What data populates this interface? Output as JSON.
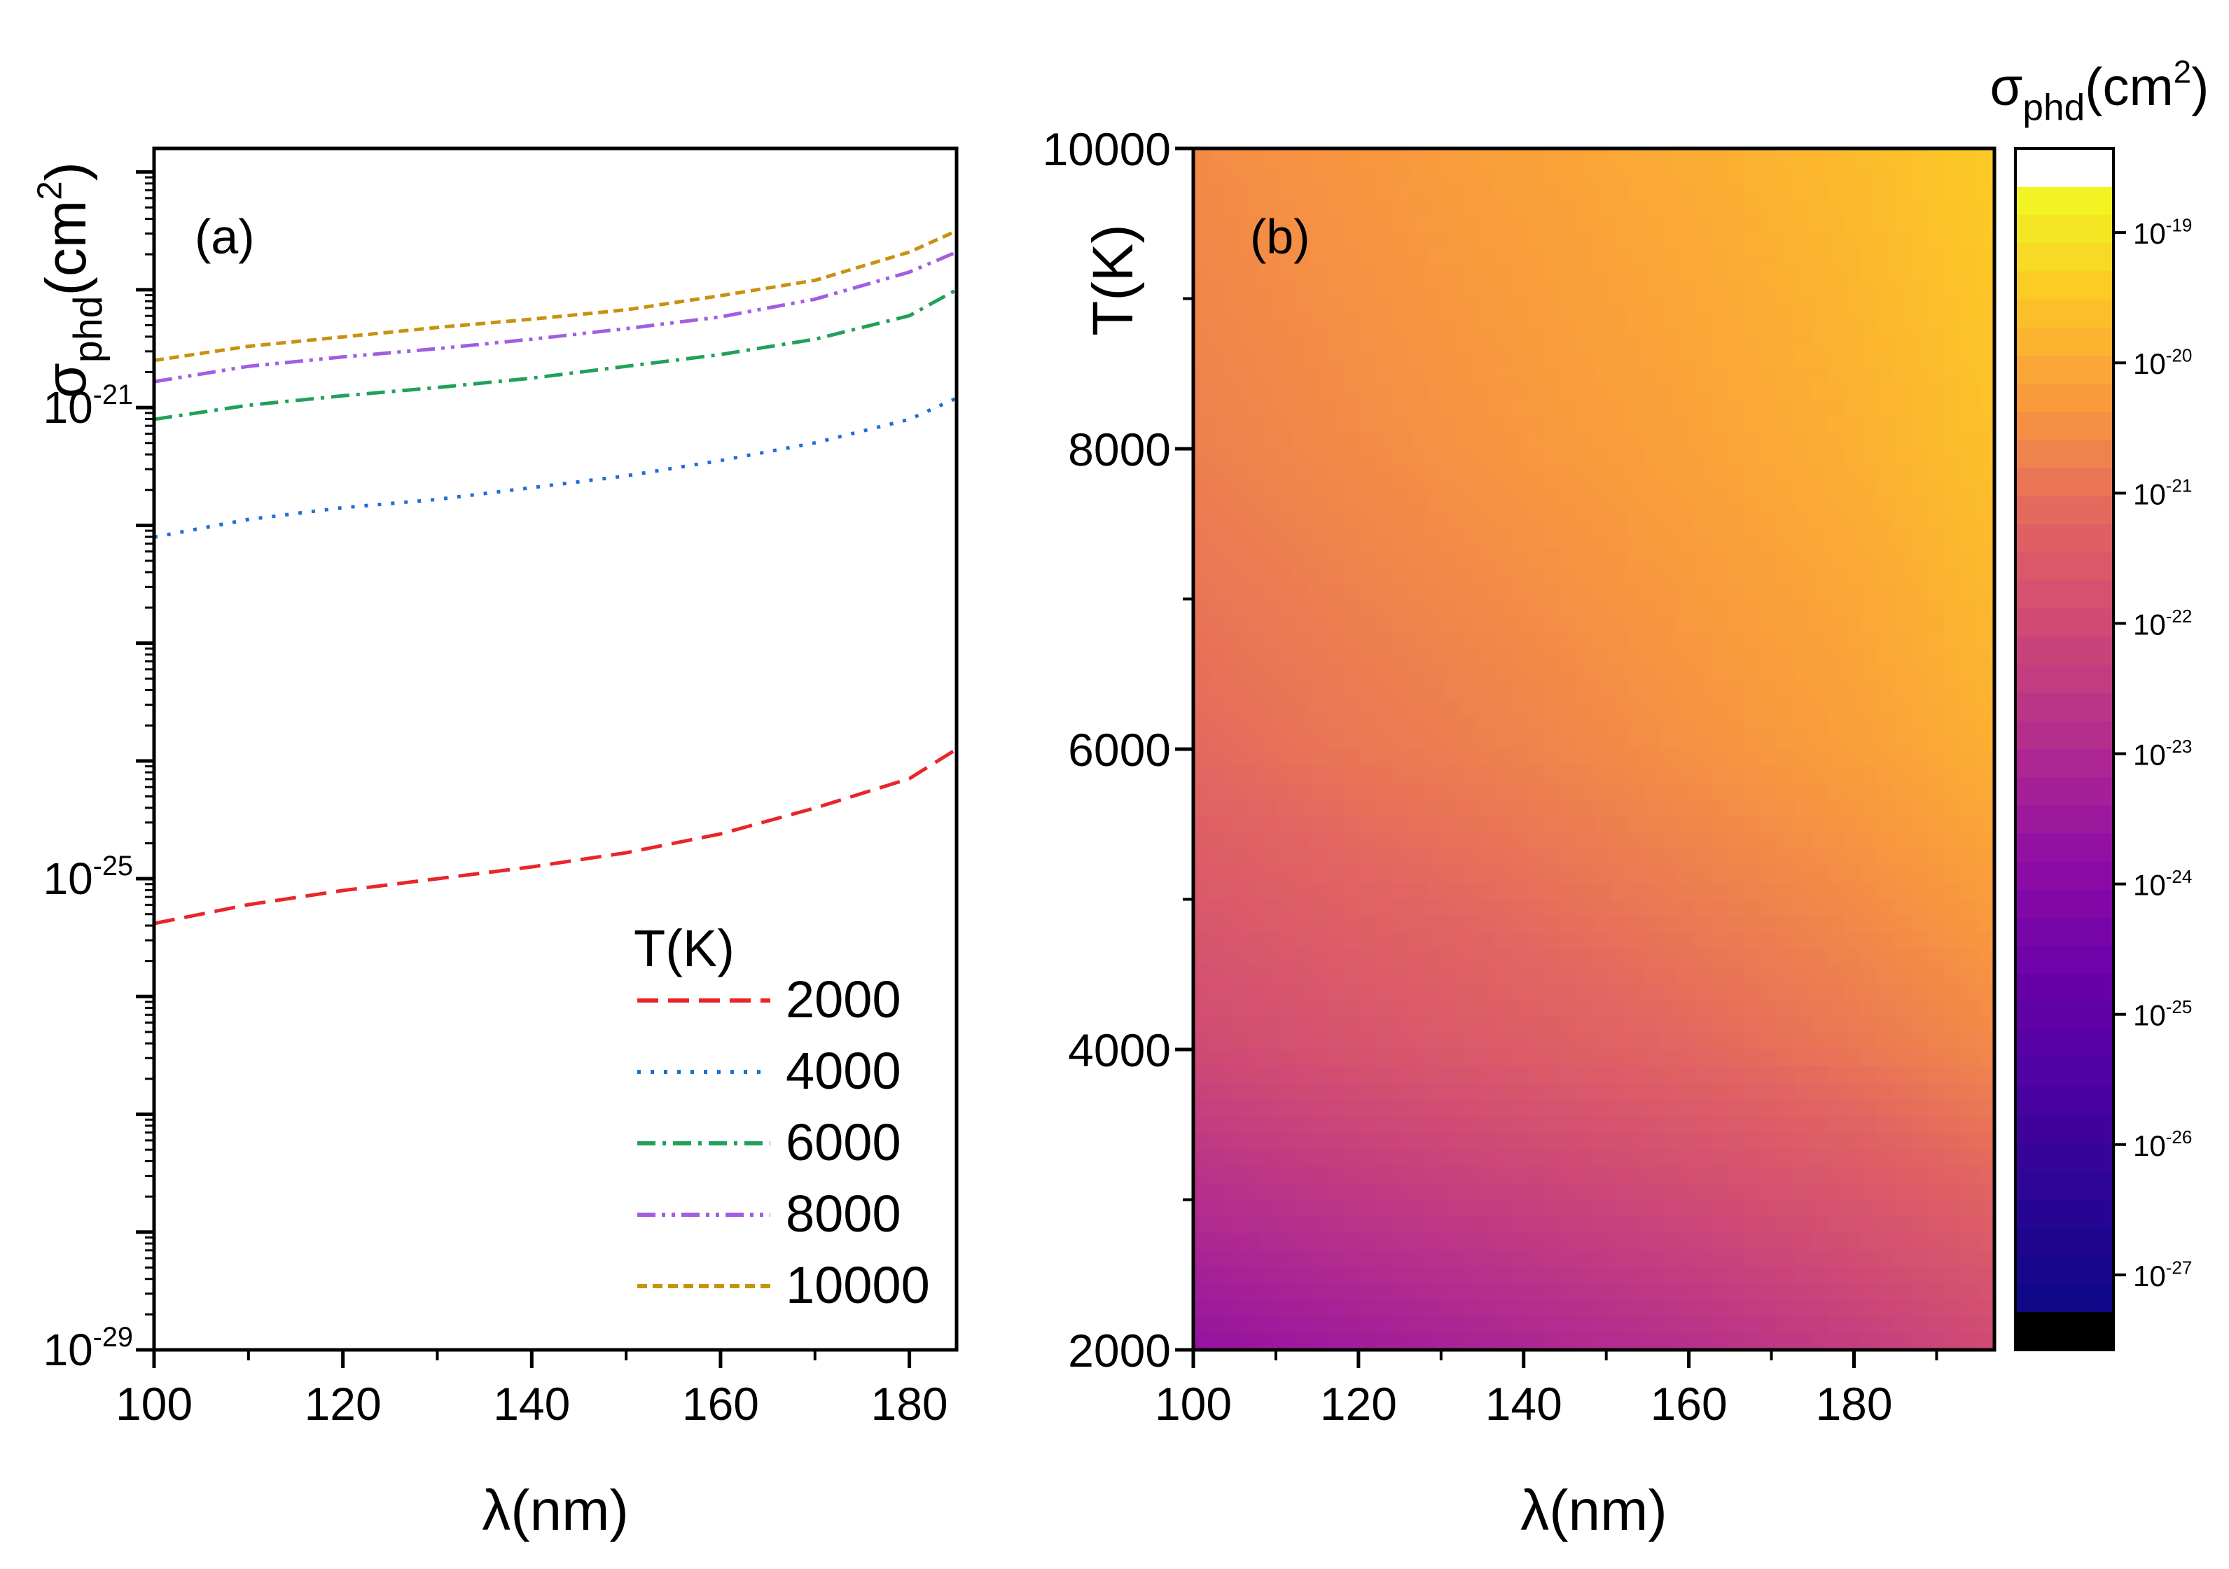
{
  "chart_data": [
    {
      "panel": "(a)",
      "type": "line",
      "title": "",
      "xlabel": "λ(nm)",
      "ylabel": {
        "base": "σ",
        "sub": "phd",
        "rest": "(cm",
        "sup": "2",
        "close": ")"
      },
      "xlim": [
        100,
        185
      ],
      "ylim_log10": [
        -29,
        -18.8
      ],
      "yscale": "log",
      "x_ticks": [
        100,
        120,
        140,
        160,
        180
      ],
      "y_ticks": [
        {
          "base": "10",
          "exp": "-21",
          "value_log10": -21
        },
        {
          "base": "10",
          "exp": "-25",
          "value_log10": -25
        },
        {
          "base": "10",
          "exp": "-29",
          "value_log10": -29
        }
      ],
      "legend": {
        "title": "T(K)",
        "placement": "lower-right"
      },
      "x": [
        100,
        110,
        120,
        130,
        140,
        150,
        160,
        170,
        180,
        185
      ],
      "series": [
        {
          "name": "2000",
          "color": "#e8262a",
          "dash": "dash",
          "log10_values": [
            -25.38,
            -25.22,
            -25.1,
            -25.0,
            -24.9,
            -24.78,
            -24.62,
            -24.4,
            -24.15,
            -23.9
          ]
        },
        {
          "name": "4000",
          "color": "#1f6fd6",
          "dash": "dot",
          "log10_values": [
            -22.1,
            -21.95,
            -21.85,
            -21.78,
            -21.68,
            -21.58,
            -21.45,
            -21.3,
            -21.1,
            -20.92
          ]
        },
        {
          "name": "6000",
          "color": "#22a05a",
          "dash": "dashdot",
          "log10_values": [
            -21.1,
            -20.98,
            -20.9,
            -20.83,
            -20.75,
            -20.65,
            -20.55,
            -20.42,
            -20.22,
            -20.0
          ]
        },
        {
          "name": "8000",
          "color": "#a15ee0",
          "dash": "dashdotdot",
          "log10_values": [
            -20.78,
            -20.65,
            -20.57,
            -20.5,
            -20.42,
            -20.33,
            -20.23,
            -20.08,
            -19.85,
            -19.68
          ]
        },
        {
          "name": "10000",
          "color": "#c89211",
          "dash": "shortdash",
          "log10_values": [
            -20.6,
            -20.48,
            -20.4,
            -20.32,
            -20.25,
            -20.17,
            -20.05,
            -19.92,
            -19.68,
            -19.5
          ]
        }
      ]
    },
    {
      "panel": "(b)",
      "type": "heatmap",
      "title": "",
      "xlabel": "λ(nm)",
      "ylabel": "T(K)",
      "xlim": [
        100,
        197
      ],
      "ylim": [
        2000,
        10000
      ],
      "x_ticks": [
        100,
        120,
        140,
        160,
        180
      ],
      "y_ticks": [
        2000,
        4000,
        6000,
        8000,
        10000
      ],
      "colorbar": {
        "label": {
          "base": "σ",
          "sub": "phd",
          "rest": "(cm",
          "sup": "2",
          "close": ")"
        },
        "scale": "log",
        "ticks": [
          {
            "base": "10",
            "exp": "-19",
            "value_log10": -19
          },
          {
            "base": "10",
            "exp": "-20",
            "value_log10": -20
          },
          {
            "base": "10",
            "exp": "-21",
            "value_log10": -21
          },
          {
            "base": "10",
            "exp": "-22",
            "value_log10": -22
          },
          {
            "base": "10",
            "exp": "-23",
            "value_log10": -23
          },
          {
            "base": "10",
            "exp": "-24",
            "value_log10": -24
          },
          {
            "base": "10",
            "exp": "-25",
            "value_log10": -25
          },
          {
            "base": "10",
            "exp": "-26",
            "value_log10": -26
          },
          {
            "base": "10",
            "exp": "-27",
            "value_log10": -27
          }
        ],
        "range_log10": [
          -27.28,
          -18.65
        ],
        "colormap": [
          "#f0f921",
          "#fdc527",
          "#f89540",
          "#e16462",
          "#cc4778",
          "#b12a90",
          "#8f0da4",
          "#6a00a8",
          "#4c02a1",
          "#2a0593",
          "#0d0887"
        ],
        "under_color": "#000000",
        "over_color": "#ffffff"
      },
      "x": [
        100,
        120,
        140,
        160,
        180,
        197
      ],
      "y": [
        2000,
        4000,
        6000,
        8000,
        10000
      ],
      "z_log10": [
        [
          -23.7,
          -23.4,
          -23.1,
          -22.8,
          -22.4,
          -22.0
        ],
        [
          -22.0,
          -21.7,
          -21.45,
          -21.2,
          -20.9,
          -20.6
        ],
        [
          -21.15,
          -20.9,
          -20.7,
          -20.45,
          -20.2,
          -19.9
        ],
        [
          -20.75,
          -20.55,
          -20.35,
          -20.15,
          -19.9,
          -19.6
        ],
        [
          -20.55,
          -20.35,
          -20.15,
          -19.95,
          -19.7,
          -19.4
        ]
      ]
    }
  ]
}
